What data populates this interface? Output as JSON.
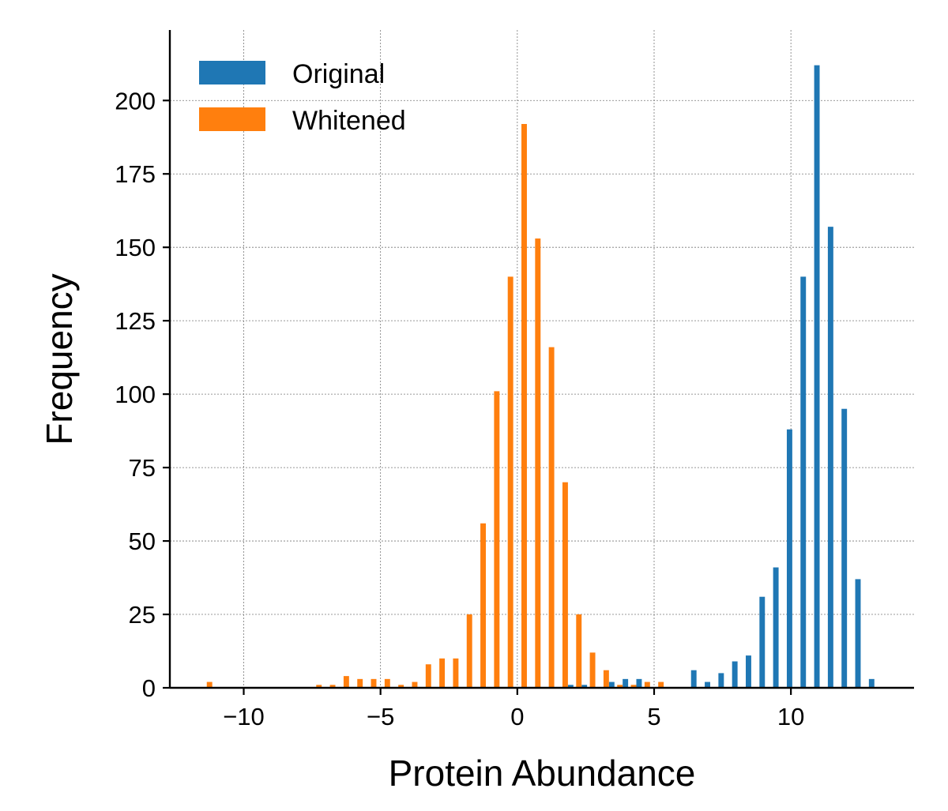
{
  "chart_data": {
    "type": "bar",
    "title": "",
    "xlabel": "Protein Abundance",
    "ylabel": "Frequency",
    "xlim": [
      -12.7,
      14.5
    ],
    "ylim": [
      0,
      224
    ],
    "xticks": [
      -10,
      -5,
      0,
      5,
      10
    ],
    "xtick_labels": [
      "−10",
      "−5",
      "0",
      "5",
      "10"
    ],
    "yticks": [
      0,
      25,
      50,
      75,
      100,
      125,
      150,
      175,
      200
    ],
    "ytick_labels": [
      "0",
      "25",
      "50",
      "75",
      "100",
      "125",
      "150",
      "175",
      "200"
    ],
    "grid": true,
    "legend_position": "top-left",
    "series": [
      {
        "name": "Original",
        "color": "#1f77b4",
        "x": [
          1.95,
          2.45,
          3.45,
          3.95,
          4.45,
          6.45,
          6.95,
          7.45,
          7.95,
          8.45,
          8.95,
          9.45,
          9.95,
          10.45,
          10.95,
          11.45,
          11.95,
          12.45,
          12.95
        ],
        "values": [
          1,
          1,
          2,
          3,
          3,
          6,
          2,
          5,
          9,
          11,
          31,
          41,
          88,
          140,
          212,
          157,
          95,
          37,
          3
        ]
      },
      {
        "name": "Whitened",
        "color": "#ff7f0e",
        "x": [
          -11.25,
          -7.25,
          -6.75,
          -6.25,
          -5.75,
          -5.25,
          -4.75,
          -4.25,
          -3.75,
          -3.25,
          -2.75,
          -2.25,
          -1.75,
          -1.25,
          -0.75,
          -0.25,
          0.25,
          0.75,
          1.25,
          1.75,
          2.25,
          2.75,
          3.25,
          3.75,
          4.25,
          4.75,
          5.25
        ],
        "values": [
          2,
          1,
          1,
          4,
          3,
          3,
          3,
          1,
          2,
          8,
          10,
          10,
          25,
          56,
          101,
          140,
          192,
          153,
          116,
          70,
          25,
          12,
          6,
          1,
          1,
          2,
          2
        ]
      }
    ]
  }
}
